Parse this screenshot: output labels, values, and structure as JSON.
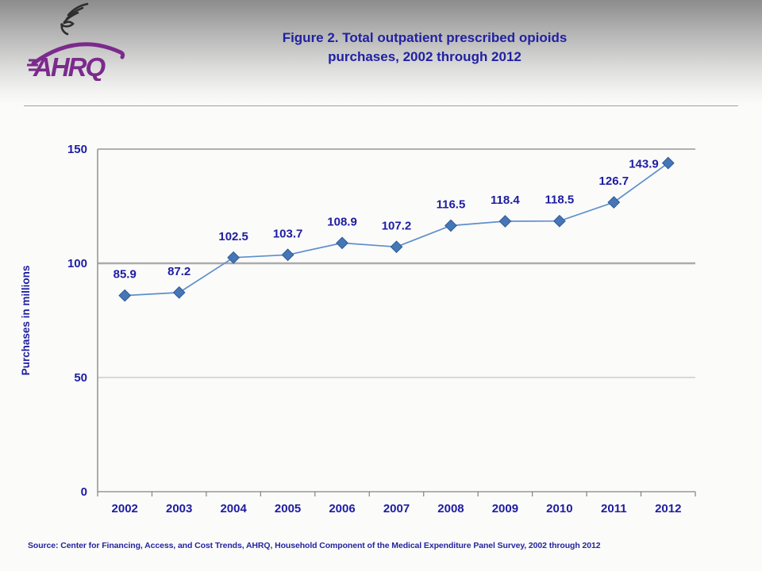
{
  "header": {
    "title_line1": "Figure 2. Total outpatient prescribed opioids",
    "title_line2": "purchases, 2002 through 2012",
    "logo_text": "AHRQ",
    "logo_icon": "hhs-eagle-icon",
    "logo_color": "#7B2A8C"
  },
  "chart_data": {
    "type": "line",
    "title": "Figure 2. Total outpatient prescribed opioids purchases, 2002 through 2012",
    "categories": [
      "2002",
      "2003",
      "2004",
      "2005",
      "2006",
      "2007",
      "2008",
      "2009",
      "2010",
      "2011",
      "2012"
    ],
    "values": [
      85.9,
      87.2,
      102.5,
      103.7,
      108.9,
      107.2,
      116.5,
      118.4,
      118.5,
      126.7,
      143.9
    ],
    "data_labels": [
      "85.9",
      "87.2",
      "102.5",
      "103.7",
      "108.9",
      "107.2",
      "116.5",
      "118.4",
      "118.5",
      "126.7",
      "143.9"
    ],
    "xlabel": "",
    "ylabel": "Purchases in millions",
    "ylim": [
      0,
      150
    ],
    "yticks": [
      0,
      50,
      100,
      150
    ],
    "grid": "horizontal",
    "legend": "none",
    "marker": "diamond",
    "colors": {
      "marker_fill": "#4576B5",
      "marker_stroke": "#2E5B96",
      "line": "#5E8FCB",
      "label_text": "#1D1DA2",
      "axis_text": "#1D1DA2",
      "gridline_major": "#ABABAB",
      "gridline_minor": "#C2C2C2",
      "axis_line": "#828282"
    }
  },
  "footer": {
    "source": "Source: Center for Financing, Access, and Cost Trends, AHRQ, Household Component of the Medical Expenditure Panel Survey,  2002 through 2012"
  }
}
